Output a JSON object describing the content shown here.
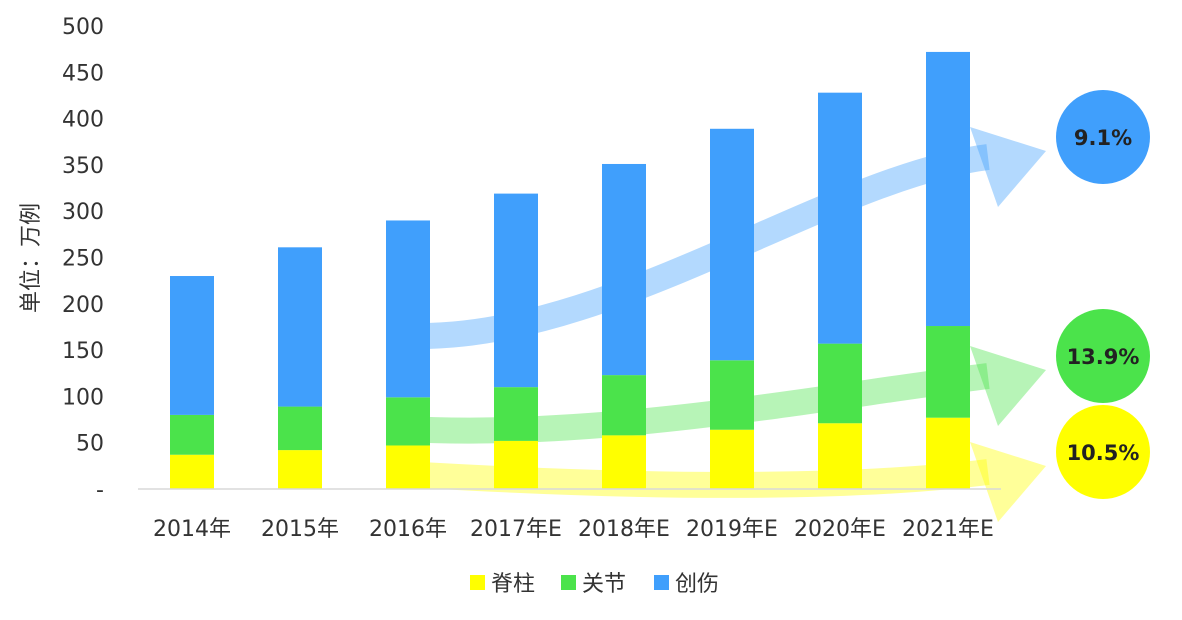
{
  "chart_data": {
    "type": "bar",
    "stacked": true,
    "ylabel": "单位：万例",
    "ylim": [
      0,
      500
    ],
    "yticks": [
      "-",
      "50",
      "100",
      "150",
      "200",
      "250",
      "300",
      "350",
      "400",
      "450",
      "500"
    ],
    "categories": [
      "2014年",
      "2015年",
      "2016年",
      "2017年E",
      "2018年E",
      "2019年E",
      "2020年E",
      "2021年E"
    ],
    "series": [
      {
        "name": "脊柱",
        "color": "#ffff00",
        "values": [
          37,
          42,
          47,
          52,
          58,
          64,
          71,
          77
        ]
      },
      {
        "name": "关节",
        "color": "#4be34b",
        "values": [
          43,
          47,
          52,
          58,
          65,
          75,
          86,
          99
        ]
      },
      {
        "name": "创伤",
        "color": "#409ffc",
        "values": [
          150,
          172,
          191,
          209,
          228,
          250,
          271,
          296
        ]
      }
    ],
    "annotations": [
      {
        "series": "创伤",
        "text": "9.1%",
        "color": "#409ffc"
      },
      {
        "series": "关节",
        "text": "13.9%",
        "color": "#4be34b"
      },
      {
        "series": "脊柱",
        "text": "10.5%",
        "color": "#ffff00"
      }
    ],
    "legend_position": "bottom",
    "grid": false
  }
}
